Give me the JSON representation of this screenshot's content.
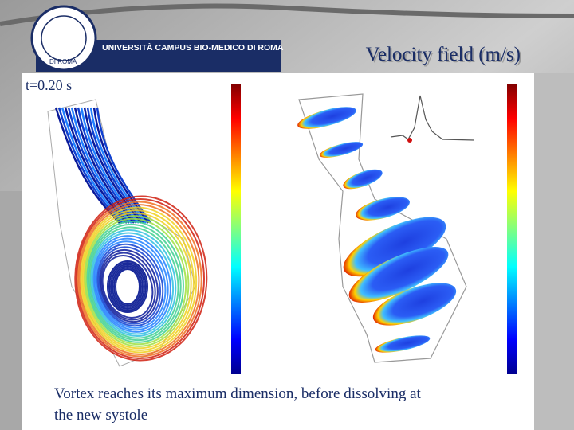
{
  "header": {
    "logo_text": "UNIVERSITÀ CAMPUS BIO-MEDICO DI ROMA",
    "logo_subtext": "DI ROMA"
  },
  "title": "Velocity field (m/s)",
  "time_label": "t=0.20 s",
  "caption": {
    "line1": "Vortex reaches its maximum dimension, before dissolving at",
    "line2": "the new systole"
  }
}
